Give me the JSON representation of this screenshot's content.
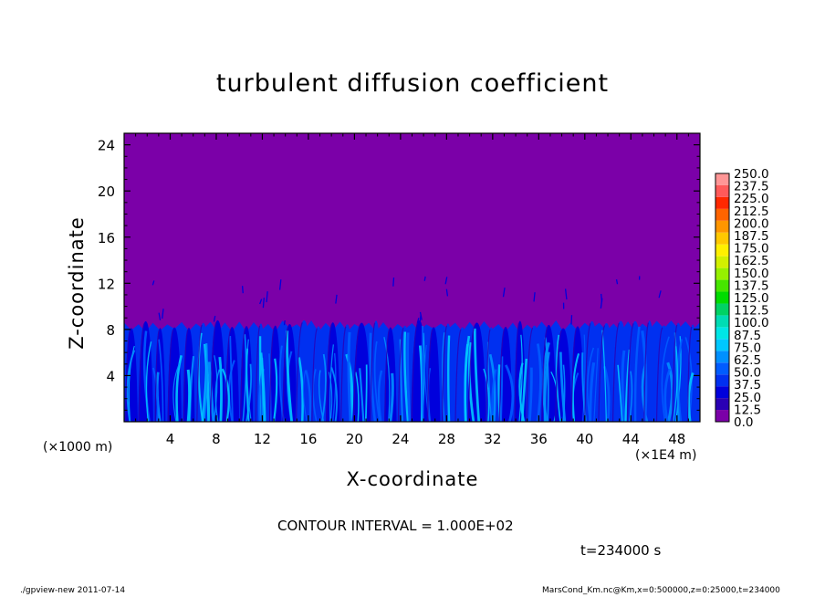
{
  "chart_data": {
    "type": "heatmap",
    "title": "turbulent diffusion coefficient",
    "xlabel": "X-coordinate",
    "ylabel": "Z-coordinate",
    "x_unit_label": "(×1E4 m)",
    "y_unit_label": "(×1000 m)",
    "xlim": [
      0,
      50
    ],
    "ylim": [
      0,
      25
    ],
    "x_ticks": [
      4,
      8,
      12,
      16,
      20,
      24,
      28,
      32,
      36,
      40,
      44,
      48
    ],
    "y_ticks": [
      4,
      8,
      12,
      16,
      20,
      24
    ],
    "background_value": 0.0,
    "turbulent_layer_top": 8.5,
    "colorbar": {
      "labels": [
        "0.0",
        "12.5",
        "25.0",
        "37.5",
        "50.0",
        "62.5",
        "75.0",
        "87.5",
        "100.0",
        "112.5",
        "125.0",
        "137.5",
        "150.0",
        "162.5",
        "175.0",
        "187.5",
        "200.0",
        "212.5",
        "225.0",
        "237.5",
        "250.0"
      ],
      "colors": [
        "#7b00a8",
        "#2a00b4",
        "#0000dc",
        "#0030f0",
        "#005cff",
        "#0090ff",
        "#00c8ff",
        "#00e6e6",
        "#00dcb4",
        "#00d264",
        "#00dc00",
        "#46e600",
        "#96f000",
        "#d2f000",
        "#fff000",
        "#ffc800",
        "#ff9600",
        "#ff6400",
        "#ff2800",
        "#ff5a5a",
        "#ff9696"
      ]
    },
    "contour_interval": "CONTOUR INTERVAL = 1.000E+02",
    "time_label": "t=234000 s"
  },
  "footer": {
    "left": "./gpview-new  2011-07-14",
    "right": "MarsCond_Km.nc@Km,x=0:500000,z=0:25000,t=234000"
  }
}
